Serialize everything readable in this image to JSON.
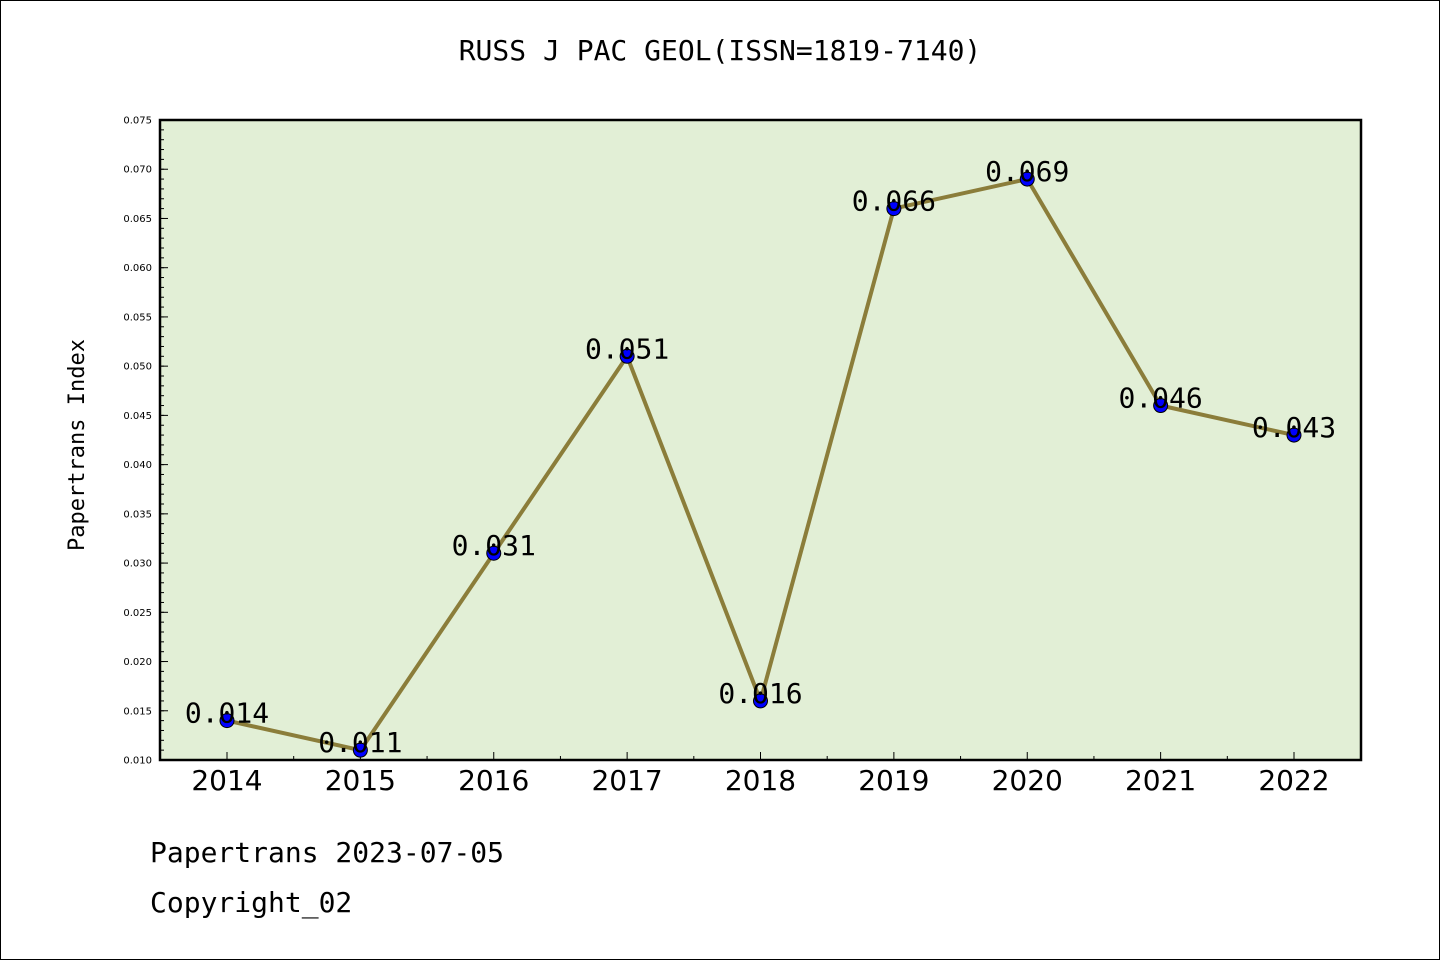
{
  "chart_data": {
    "type": "line",
    "title": "RUSS J PAC GEOL(ISSN=1819-7140)",
    "xlabel": "",
    "ylabel": "Papertrans Index",
    "categories": [
      "2014",
      "2015",
      "2016",
      "2017",
      "2018",
      "2019",
      "2020",
      "2021",
      "2022"
    ],
    "values": [
      0.014,
      0.011,
      0.031,
      0.051,
      0.016,
      0.066,
      0.069,
      0.046,
      0.043
    ],
    "data_labels": [
      "0.014",
      "0.011",
      "0.031",
      "0.051",
      "0.016",
      "0.066",
      "0.069",
      "0.046",
      "0.043"
    ],
    "ylim": [
      0.01,
      0.075
    ],
    "yticks": [
      "0.010",
      "0.015",
      "0.020",
      "0.025",
      "0.030",
      "0.035",
      "0.040",
      "0.045",
      "0.050",
      "0.055",
      "0.060",
      "0.065",
      "0.070",
      "0.075"
    ],
    "grid": false,
    "colors": {
      "plot_background": "#e2efd6",
      "line": "#8b7d3a",
      "marker": "#0000ff",
      "marker_edge": "#000000"
    }
  },
  "footer": {
    "date_line": "Papertrans 2023-07-05",
    "copyright": "Copyright_02"
  }
}
